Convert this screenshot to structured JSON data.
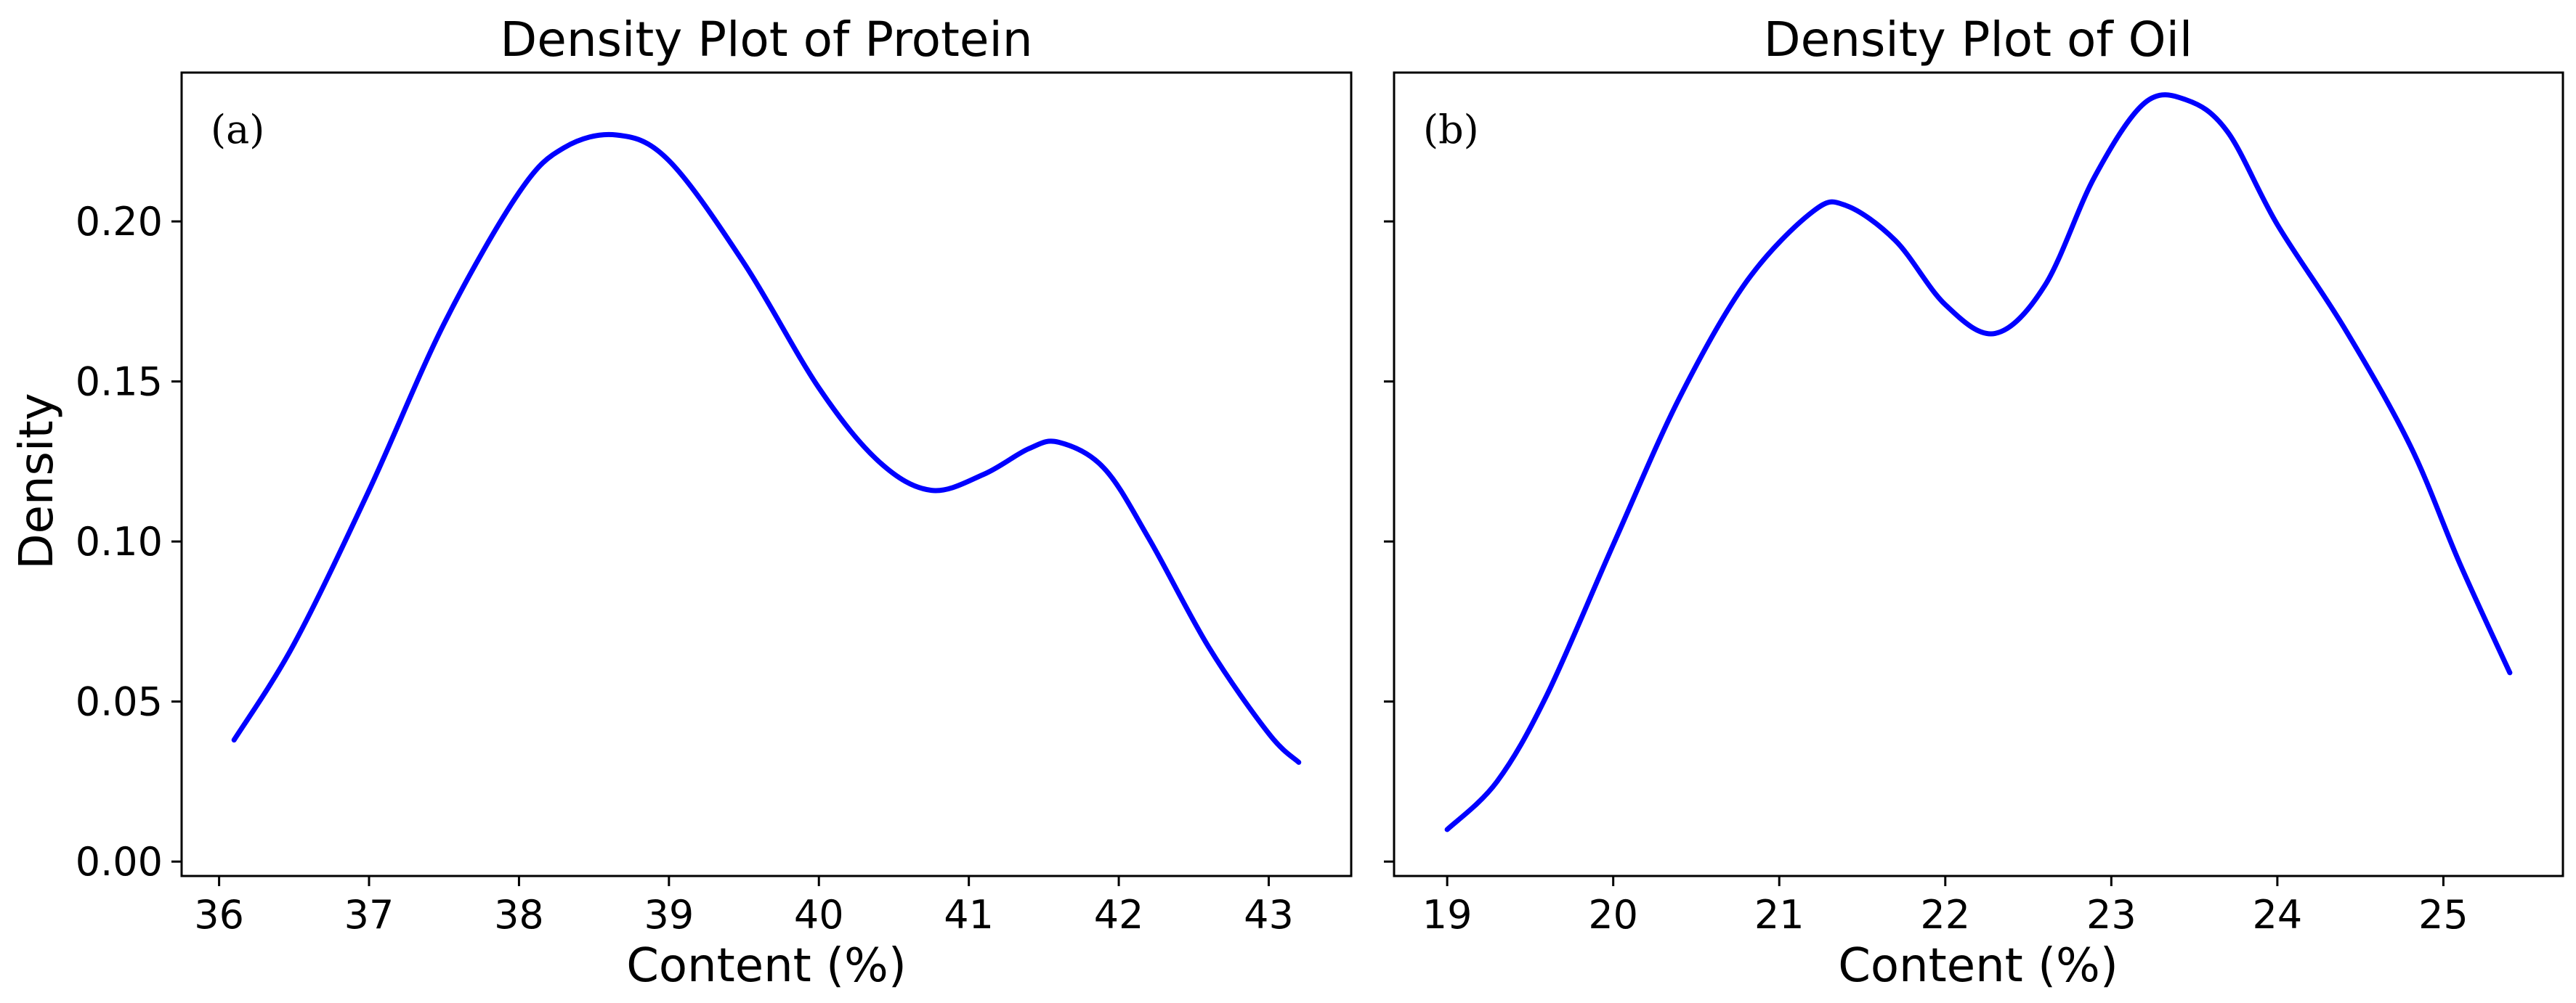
{
  "chart_data": [
    {
      "type": "line",
      "title": "Density Plot of Protein",
      "panel_label": "(a)",
      "xlabel": "Content (%)",
      "ylabel": "Density",
      "xlim": [
        35.75,
        43.55
      ],
      "ylim": [
        -0.0045,
        0.2465
      ],
      "xticks": [
        36,
        37,
        38,
        39,
        40,
        41,
        42,
        43
      ],
      "yticks": [
        0.0,
        0.05,
        0.1,
        0.15,
        0.2
      ],
      "ytick_labels": [
        "0.00",
        "0.05",
        "0.10",
        "0.15",
        "0.20"
      ],
      "show_ytick_labels": true,
      "grid": false,
      "line_color": "#0000ff",
      "series": [
        {
          "x": [
            36.1,
            36.5,
            37.0,
            37.5,
            38.0,
            38.3,
            38.65,
            39.0,
            39.5,
            40.0,
            40.4,
            40.75,
            41.1,
            41.4,
            41.6,
            41.9,
            42.2,
            42.6,
            43.0,
            43.2
          ],
          "y": [
            0.038,
            0.068,
            0.116,
            0.168,
            0.209,
            0.223,
            0.227,
            0.219,
            0.187,
            0.148,
            0.125,
            0.116,
            0.121,
            0.129,
            0.131,
            0.123,
            0.101,
            0.067,
            0.04,
            0.031
          ]
        }
      ]
    },
    {
      "type": "line",
      "title": "Density Plot of Oil",
      "panel_label": "(b)",
      "xlabel": "Content (%)",
      "ylabel": "",
      "xlim": [
        18.68,
        25.72
      ],
      "ylim": [
        -0.0045,
        0.2465
      ],
      "xticks": [
        19,
        20,
        21,
        22,
        23,
        24,
        25
      ],
      "yticks": [
        0.0,
        0.05,
        0.1,
        0.15,
        0.2
      ],
      "ytick_labels": [],
      "show_ytick_labels": false,
      "grid": false,
      "line_color": "#0000ff",
      "series": [
        {
          "x": [
            19.0,
            19.3,
            19.6,
            20.0,
            20.4,
            20.8,
            21.2,
            21.4,
            21.7,
            22.0,
            22.3,
            22.6,
            22.9,
            23.2,
            23.45,
            23.7,
            24.0,
            24.4,
            24.8,
            25.1,
            25.4
          ],
          "y": [
            0.01,
            0.025,
            0.052,
            0.099,
            0.145,
            0.181,
            0.203,
            0.205,
            0.194,
            0.174,
            0.165,
            0.18,
            0.214,
            0.237,
            0.238,
            0.228,
            0.199,
            0.167,
            0.13,
            0.093,
            0.059
          ]
        }
      ]
    }
  ]
}
